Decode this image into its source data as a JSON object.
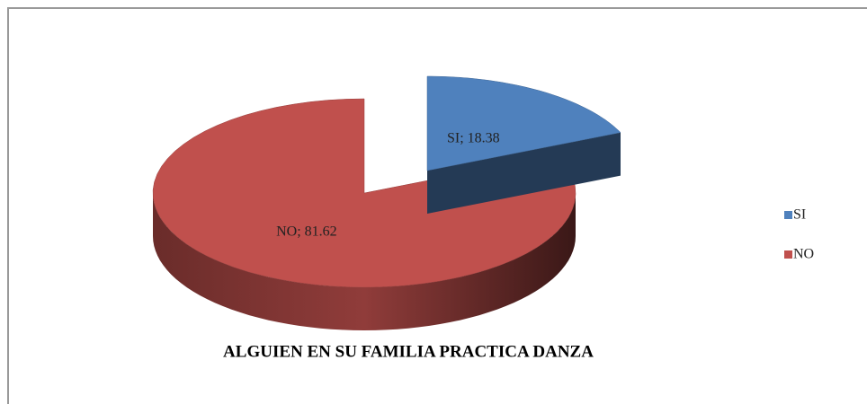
{
  "chart_data": {
    "type": "pie",
    "title": "ALGUIEN EN SU FAMILIA PRACTICA DANZA",
    "categories": [
      "SI",
      "NO"
    ],
    "values": [
      18.38,
      81.62
    ],
    "value_labels": [
      "SI; 18.38",
      "NO; 81.62"
    ],
    "colors": [
      "#4f81bd",
      "#c0504d"
    ],
    "legend": "right"
  }
}
